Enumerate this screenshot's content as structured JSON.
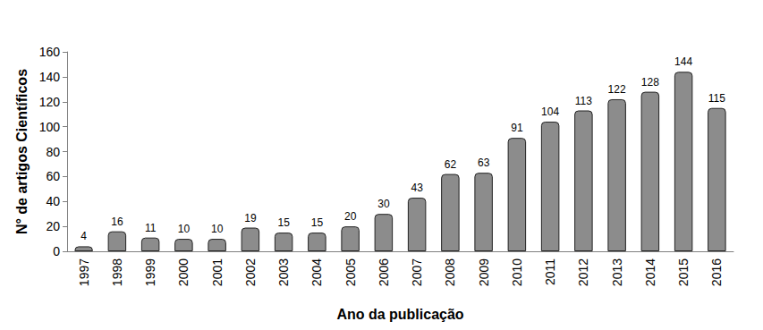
{
  "chart_data": {
    "type": "bar",
    "x_label": "Ano da publicação",
    "y_label": "N° de artigos Científicos",
    "categories": [
      "1997",
      "1998",
      "1999",
      "2000",
      "2001",
      "2002",
      "2003",
      "2004",
      "2005",
      "2006",
      "2007",
      "2008",
      "2009",
      "2010",
      "2011",
      "2012",
      "2013",
      "2014",
      "2015",
      "2016"
    ],
    "values": [
      4,
      16,
      11,
      10,
      10,
      19,
      15,
      15,
      20,
      30,
      43,
      62,
      63,
      91,
      104,
      113,
      122,
      128,
      144,
      115
    ],
    "color": "#8c8c8c",
    "ylim": [
      0,
      160
    ],
    "yticks": [
      0,
      20,
      40,
      60,
      80,
      100,
      120,
      140,
      160
    ],
    "grid": false,
    "data_labels": true
  }
}
